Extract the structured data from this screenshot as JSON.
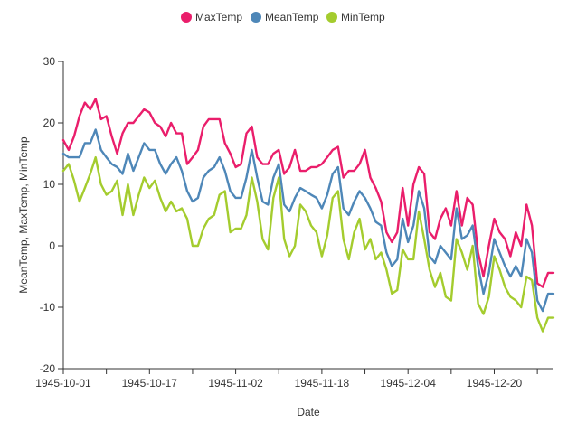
{
  "chart_data": {
    "type": "line",
    "xlabel": "Date",
    "ylabel": "MeanTemp, MaxTemp, MinTemp",
    "ylim": [
      -20,
      30
    ],
    "yticks": [
      "30",
      "20",
      "10",
      "0",
      "-10",
      "-20"
    ],
    "xticks": [
      "1945-10-01",
      "1945-10-17",
      "1945-11-02",
      "1945-11-18",
      "1945-12-04",
      "1945-12-20"
    ],
    "legend_position": "top-center",
    "x_start": "1945-10-01",
    "x_end": "1945-12-31",
    "series": [
      {
        "name": "MaxTemp",
        "color": "#ea1e6b",
        "values": [
          17.2,
          15.6,
          17.8,
          21.1,
          23.3,
          22.2,
          23.9,
          20.6,
          21.1,
          17.8,
          15.0,
          18.3,
          20.0,
          20.0,
          21.1,
          22.2,
          21.7,
          20.0,
          19.4,
          17.8,
          20.0,
          18.3,
          18.3,
          13.3,
          14.4,
          15.6,
          19.4,
          20.6,
          20.6,
          20.6,
          16.7,
          15.0,
          12.8,
          13.3,
          18.3,
          19.4,
          14.4,
          13.3,
          13.3,
          15.0,
          15.6,
          11.7,
          12.8,
          15.6,
          12.2,
          12.2,
          12.8,
          12.8,
          13.3,
          14.4,
          15.6,
          16.1,
          11.1,
          12.2,
          12.2,
          13.3,
          15.6,
          11.1,
          9.4,
          7.2,
          2.2,
          0.6,
          2.2,
          9.4,
          3.3,
          10.0,
          12.8,
          11.7,
          2.2,
          1.1,
          4.4,
          6.1,
          3.3,
          8.9,
          3.3,
          7.8,
          6.7,
          -1.1,
          -5.0,
          0.0,
          4.4,
          2.2,
          1.1,
          -1.7,
          2.2,
          0.0,
          6.7,
          3.3,
          -6.1,
          -6.7,
          -4.4,
          -4.4
        ]
      },
      {
        "name": "MeanTemp",
        "color": "#4e87b8",
        "values": [
          15.0,
          14.4,
          14.4,
          14.4,
          16.7,
          16.7,
          18.9,
          15.6,
          14.4,
          13.3,
          12.8,
          11.7,
          15.0,
          12.2,
          14.4,
          16.7,
          15.6,
          15.6,
          13.3,
          11.7,
          13.3,
          14.4,
          12.2,
          8.9,
          7.2,
          7.8,
          11.1,
          12.2,
          12.8,
          14.4,
          12.2,
          8.9,
          7.8,
          7.8,
          11.1,
          15.6,
          11.1,
          7.2,
          6.7,
          11.1,
          13.3,
          6.7,
          5.6,
          7.8,
          9.4,
          8.9,
          8.3,
          7.8,
          6.1,
          8.3,
          11.7,
          12.8,
          6.1,
          5.0,
          7.2,
          8.9,
          7.8,
          6.1,
          3.9,
          3.3,
          -1.1,
          -3.3,
          -2.2,
          4.4,
          0.6,
          3.3,
          8.9,
          6.1,
          -1.7,
          -2.8,
          0.0,
          -1.1,
          -2.2,
          6.1,
          1.1,
          1.7,
          3.3,
          -3.3,
          -7.8,
          -4.4,
          1.1,
          -1.1,
          -3.3,
          -5.0,
          -3.3,
          -5.0,
          1.1,
          -1.1,
          -8.9,
          -10.6,
          -7.8,
          -7.8
        ]
      },
      {
        "name": "MinTemp",
        "color": "#a4cc2e",
        "values": [
          12.2,
          13.3,
          10.6,
          7.2,
          9.4,
          11.7,
          14.4,
          10.0,
          8.3,
          8.9,
          10.6,
          5.0,
          10.0,
          5.0,
          8.3,
          11.1,
          9.4,
          10.6,
          7.8,
          5.6,
          7.2,
          5.6,
          6.1,
          4.4,
          0.0,
          0.0,
          2.8,
          4.4,
          5.0,
          8.3,
          8.9,
          2.2,
          2.8,
          2.8,
          5.0,
          11.1,
          7.2,
          1.1,
          -0.6,
          7.8,
          11.1,
          1.1,
          -1.7,
          0.0,
          6.7,
          5.6,
          3.3,
          2.2,
          -1.7,
          1.7,
          7.8,
          8.9,
          1.1,
          -2.2,
          2.2,
          4.4,
          -0.6,
          1.1,
          -2.2,
          -1.1,
          -3.9,
          -7.8,
          -7.2,
          -0.6,
          -2.2,
          -2.2,
          5.6,
          1.1,
          -3.9,
          -6.7,
          -4.4,
          -8.3,
          -8.9,
          1.1,
          -1.1,
          -3.9,
          0.0,
          -9.4,
          -11.1,
          -8.3,
          -1.7,
          -3.9,
          -6.7,
          -8.3,
          -8.9,
          -10.0,
          -5.0,
          -5.6,
          -11.7,
          -13.9,
          -11.7,
          -11.7
        ]
      }
    ]
  }
}
